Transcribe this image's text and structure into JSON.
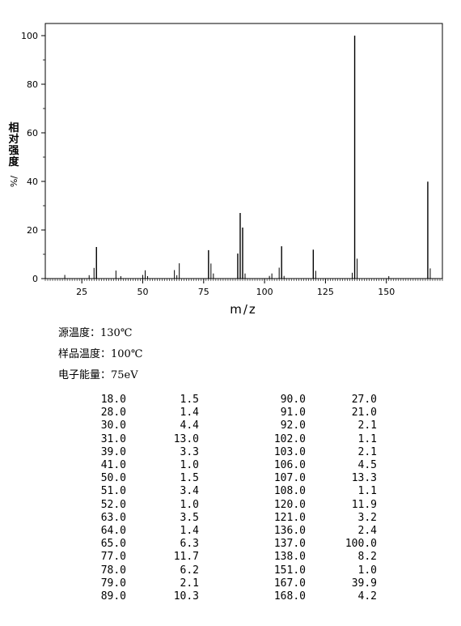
{
  "chart_data": {
    "type": "bar",
    "xlabel": "m/z",
    "ylabel": "相对强度/%",
    "xlim": [
      10,
      173
    ],
    "ylim": [
      0,
      105
    ],
    "xticks": [
      25,
      50,
      75,
      100,
      125,
      150
    ],
    "yticks": [
      0,
      20,
      40,
      60,
      80,
      100
    ],
    "grid": false,
    "peaks": [
      {
        "x": 18,
        "y": 1.5
      },
      {
        "x": 28,
        "y": 1.4
      },
      {
        "x": 30,
        "y": 4.4
      },
      {
        "x": 31,
        "y": 13.0
      },
      {
        "x": 39,
        "y": 3.3
      },
      {
        "x": 41,
        "y": 1.0
      },
      {
        "x": 50,
        "y": 1.5
      },
      {
        "x": 51,
        "y": 3.4
      },
      {
        "x": 52,
        "y": 1.0
      },
      {
        "x": 63,
        "y": 3.5
      },
      {
        "x": 64,
        "y": 1.4
      },
      {
        "x": 65,
        "y": 6.3
      },
      {
        "x": 77,
        "y": 11.7
      },
      {
        "x": 78,
        "y": 6.2
      },
      {
        "x": 79,
        "y": 2.1
      },
      {
        "x": 89,
        "y": 10.3
      },
      {
        "x": 90,
        "y": 27.0
      },
      {
        "x": 91,
        "y": 21.0
      },
      {
        "x": 92,
        "y": 2.1
      },
      {
        "x": 102,
        "y": 1.1
      },
      {
        "x": 103,
        "y": 2.1
      },
      {
        "x": 106,
        "y": 4.5
      },
      {
        "x": 107,
        "y": 13.3
      },
      {
        "x": 108,
        "y": 1.1
      },
      {
        "x": 120,
        "y": 11.9
      },
      {
        "x": 121,
        "y": 3.2
      },
      {
        "x": 136,
        "y": 2.4
      },
      {
        "x": 137,
        "y": 100.0
      },
      {
        "x": 138,
        "y": 8.2
      },
      {
        "x": 151,
        "y": 1.0
      },
      {
        "x": 167,
        "y": 39.9
      },
      {
        "x": 168,
        "y": 4.2
      }
    ]
  },
  "info": {
    "source_temp": "源温度：130℃",
    "sample_temp": "样品温度：100℃",
    "electron_energy": "电子能量：75eV"
  },
  "table_rows": [
    [
      "18.0",
      "1.5",
      "90.0",
      "27.0"
    ],
    [
      "28.0",
      "1.4",
      "91.0",
      "21.0"
    ],
    [
      "30.0",
      "4.4",
      "92.0",
      "2.1"
    ],
    [
      "31.0",
      "13.0",
      "102.0",
      "1.1"
    ],
    [
      "39.0",
      "3.3",
      "103.0",
      "2.1"
    ],
    [
      "41.0",
      "1.0",
      "106.0",
      "4.5"
    ],
    [
      "50.0",
      "1.5",
      "107.0",
      "13.3"
    ],
    [
      "51.0",
      "3.4",
      "108.0",
      "1.1"
    ],
    [
      "52.0",
      "1.0",
      "120.0",
      "11.9"
    ],
    [
      "63.0",
      "3.5",
      "121.0",
      "3.2"
    ],
    [
      "64.0",
      "1.4",
      "136.0",
      "2.4"
    ],
    [
      "65.0",
      "6.3",
      "137.0",
      "100.0"
    ],
    [
      "77.0",
      "11.7",
      "138.0",
      "8.2"
    ],
    [
      "78.0",
      "6.2",
      "151.0",
      "1.0"
    ],
    [
      "79.0",
      "2.1",
      "167.0",
      "39.9"
    ],
    [
      "89.0",
      "10.3",
      "168.0",
      "4.2"
    ]
  ]
}
